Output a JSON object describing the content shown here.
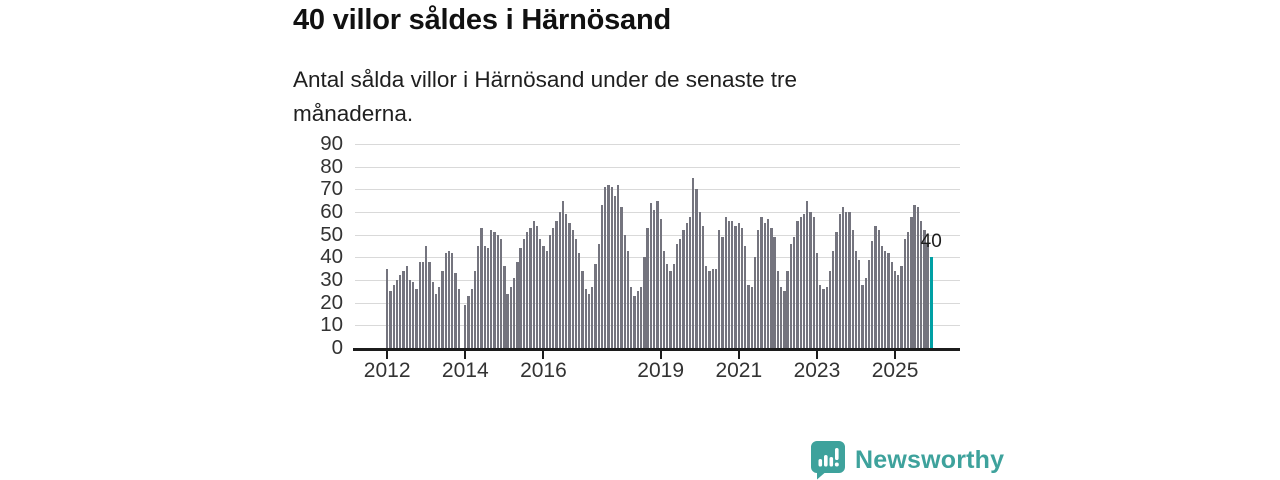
{
  "header": {
    "title": "40 villor såldes i Härnösand",
    "subtitle": "Antal sålda villor i Härnösand under de senaste tre månaderna."
  },
  "brand": {
    "name": "Newsworthy",
    "logo_icon": "bar-chart-speech-bubble-icon",
    "color": "#3ea29c"
  },
  "chart_data": {
    "type": "bar",
    "title": "40 villor såldes i Härnösand",
    "subtitle": "Antal sålda villor i Härnösand under de senaste tre månaderna.",
    "xlabel": "",
    "ylabel": "",
    "frequency": "monthly",
    "x_start": "2012-01",
    "x_end": "2025-12",
    "ylim": [
      0,
      90
    ],
    "yticks": [
      0,
      10,
      20,
      30,
      40,
      50,
      60,
      70,
      80,
      90
    ],
    "xticks": [
      2012,
      2014,
      2016,
      2019,
      2021,
      2023,
      2025
    ],
    "grid": "horizontal",
    "legend": "none",
    "bar_color": "#74747e",
    "highlight_color": "#00a0a4",
    "highlight_index": 167,
    "highlight_label": "40",
    "values": [
      35,
      25,
      28,
      30,
      32,
      34,
      36,
      30,
      29,
      26,
      38,
      38,
      45,
      38,
      29,
      24,
      27,
      34,
      42,
      43,
      42,
      33,
      26,
      0,
      19,
      23,
      26,
      34,
      45,
      53,
      45,
      44,
      52,
      51,
      50,
      48,
      36,
      24,
      27,
      31,
      38,
      44,
      48,
      51,
      53,
      56,
      54,
      48,
      45,
      43,
      50,
      53,
      56,
      60,
      65,
      59,
      55,
      52,
      48,
      42,
      34,
      26,
      24,
      27,
      37,
      46,
      63,
      71,
      72,
      71,
      67,
      72,
      62,
      50,
      43,
      27,
      23,
      25,
      27,
      40,
      53,
      64,
      61,
      65,
      57,
      43,
      37,
      34,
      37,
      46,
      48,
      52,
      55,
      58,
      75,
      70,
      60,
      54,
      36,
      34,
      35,
      35,
      52,
      49,
      58,
      56,
      56,
      54,
      55,
      53,
      45,
      28,
      27,
      40,
      52,
      58,
      55,
      57,
      53,
      49,
      34,
      27,
      25,
      34,
      46,
      49,
      56,
      58,
      59,
      65,
      60,
      58,
      42,
      28,
      26,
      27,
      34,
      43,
      51,
      59,
      62,
      60,
      60,
      52,
      43,
      39,
      28,
      31,
      39,
      47,
      54,
      52,
      45,
      43,
      42,
      38,
      34,
      32,
      36,
      48,
      51,
      58,
      63,
      62,
      56,
      52,
      46,
      40
    ]
  }
}
